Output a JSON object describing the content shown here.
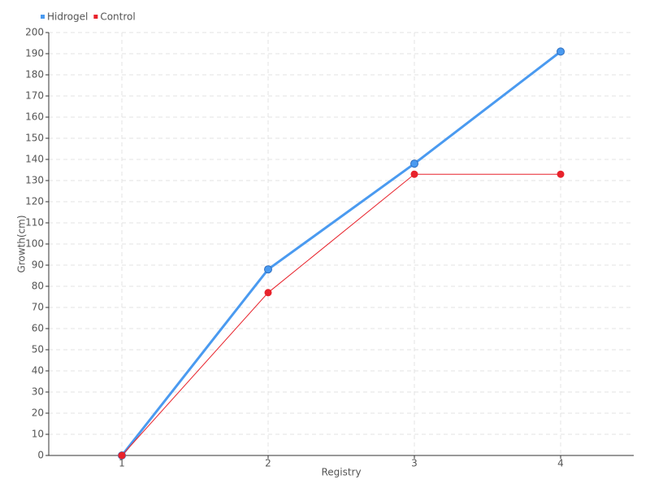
{
  "chart_data": {
    "type": "line",
    "x_label": "Registry",
    "y_label": "Growth(cm)",
    "categories": [
      "1",
      "2",
      "3",
      "4"
    ],
    "series": [
      {
        "name": "Hidrogel",
        "color": "#4a9af0",
        "values": [
          0,
          88,
          138,
          191
        ]
      },
      {
        "name": "Control",
        "color": "#e8222b",
        "values": [
          0,
          77,
          133,
          133
        ]
      }
    ],
    "ylim": [
      0,
      200
    ],
    "yticks": [
      0,
      10,
      20,
      30,
      40,
      50,
      60,
      70,
      80,
      90,
      100,
      110,
      120,
      130,
      140,
      150,
      160,
      170,
      180,
      190,
      200
    ],
    "grid": true,
    "legend": "top-left"
  }
}
